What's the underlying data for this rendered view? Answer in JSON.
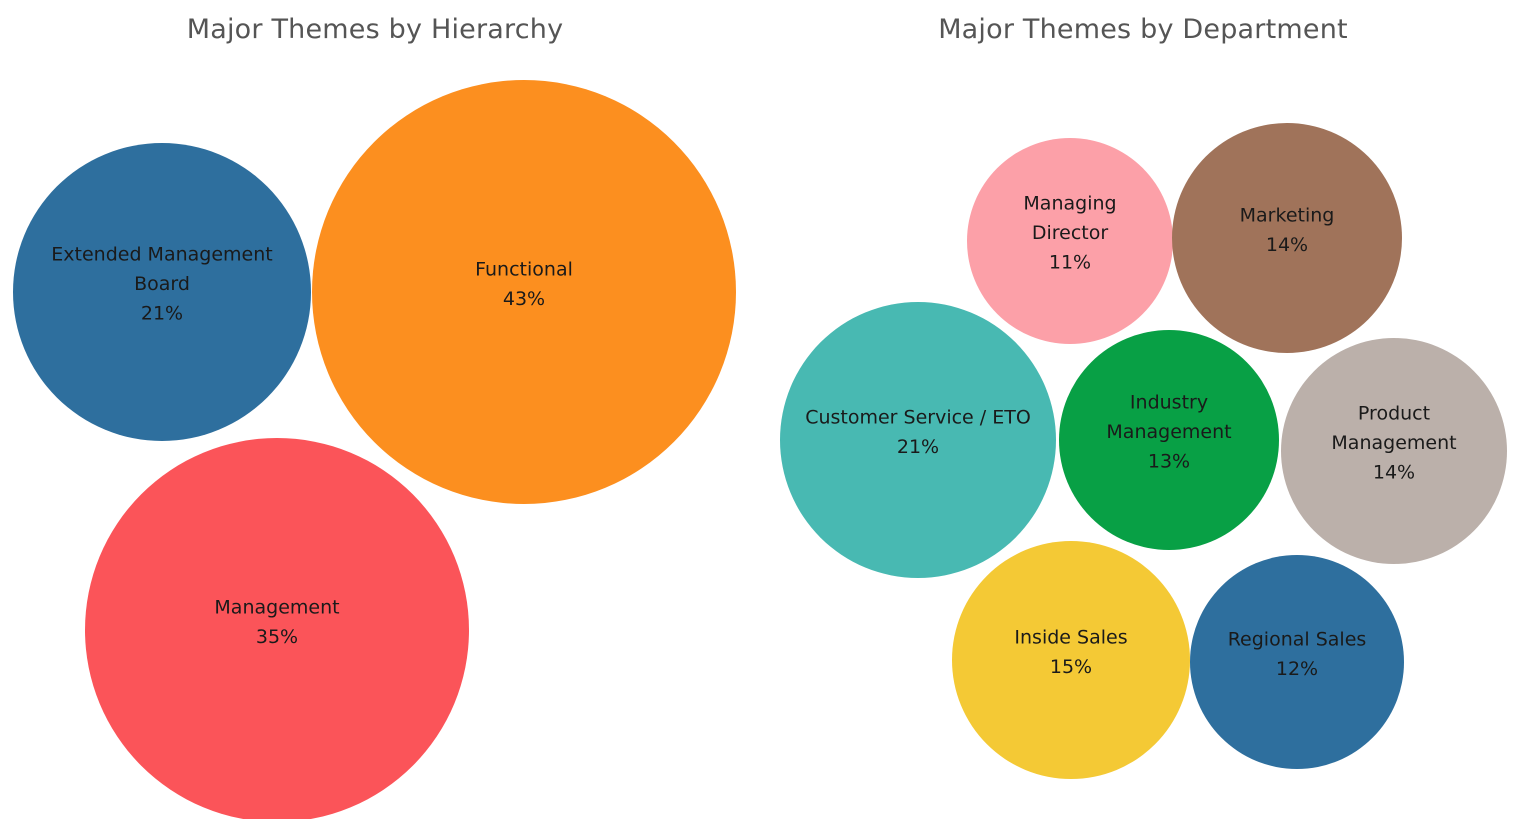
{
  "chart_data": [
    {
      "type": "bubble",
      "title": "Major Themes by Hierarchy",
      "bubbles": [
        {
          "label": [
            "Extended Management",
            "Board"
          ],
          "value": "21%",
          "percent": 21,
          "color": "#2E6F9E"
        },
        {
          "label": [
            "Functional"
          ],
          "value": "43%",
          "percent": 43,
          "color": "#FC8F1F"
        },
        {
          "label": [
            "Management"
          ],
          "value": "35%",
          "percent": 35,
          "color": "#FB5459"
        }
      ]
    },
    {
      "type": "bubble",
      "title": "Major Themes by Department",
      "bubbles": [
        {
          "label": [
            "Managing",
            "Director"
          ],
          "value": "11%",
          "percent": 11,
          "color": "#FCA0A8"
        },
        {
          "label": [
            "Marketing"
          ],
          "value": "14%",
          "percent": 14,
          "color": "#A0735A"
        },
        {
          "label": [
            "Customer Service / ETO"
          ],
          "value": "21%",
          "percent": 21,
          "color": "#48B9B2"
        },
        {
          "label": [
            "Industry",
            "Management"
          ],
          "value": "13%",
          "percent": 13,
          "color": "#08A045"
        },
        {
          "label": [
            "Product",
            "Management"
          ],
          "value": "14%",
          "percent": 14,
          "color": "#BBB0AA"
        },
        {
          "label": [
            "Inside Sales"
          ],
          "value": "15%",
          "percent": 15,
          "color": "#F4C935"
        },
        {
          "label": [
            "Regional Sales"
          ],
          "value": "12%",
          "percent": 12,
          "color": "#2E6F9E"
        }
      ]
    }
  ]
}
